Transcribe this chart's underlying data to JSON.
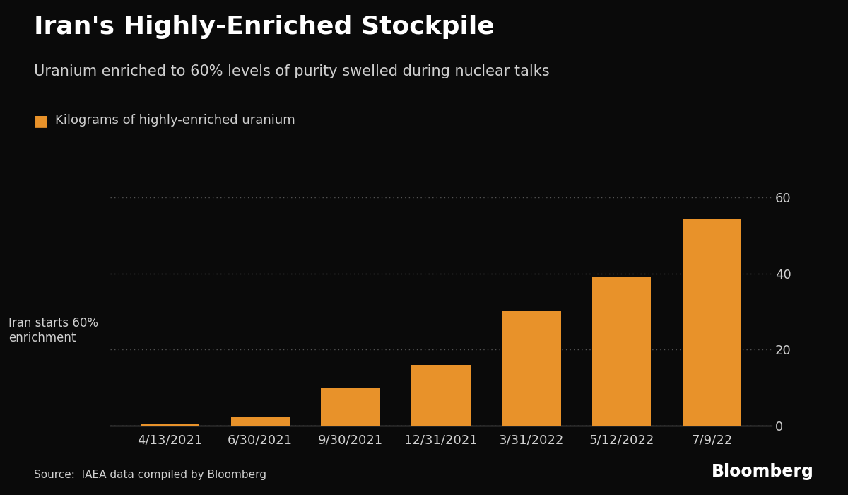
{
  "title": "Iran's Highly-Enriched Stockpile",
  "subtitle": "Uranium enriched to 60% levels of purity swelled during nuclear talks",
  "legend_label": "Kilograms of highly-enriched uranium",
  "source": "Source:  IAEA data compiled by Bloomberg",
  "categories": [
    "4/13/2021",
    "6/30/2021",
    "9/30/2021",
    "12/31/2021",
    "3/31/2022",
    "5/12/2022",
    "7/9/22"
  ],
  "values": [
    0.5,
    2.4,
    10.0,
    16.0,
    30.0,
    39.0,
    54.5
  ],
  "bar_color": "#E8922A",
  "background_color": "#0a0a0a",
  "text_color": "#d0d0d0",
  "axis_color": "#888888",
  "grid_color": "#555555",
  "annotation_text": "Iran starts 60%\nenrichment",
  "ylim": [
    0,
    65
  ],
  "yticks": [
    0,
    20,
    40,
    60
  ],
  "title_fontsize": 26,
  "subtitle_fontsize": 15,
  "legend_fontsize": 13,
  "tick_fontsize": 13,
  "source_fontsize": 11,
  "bloomberg_fontsize": 17
}
